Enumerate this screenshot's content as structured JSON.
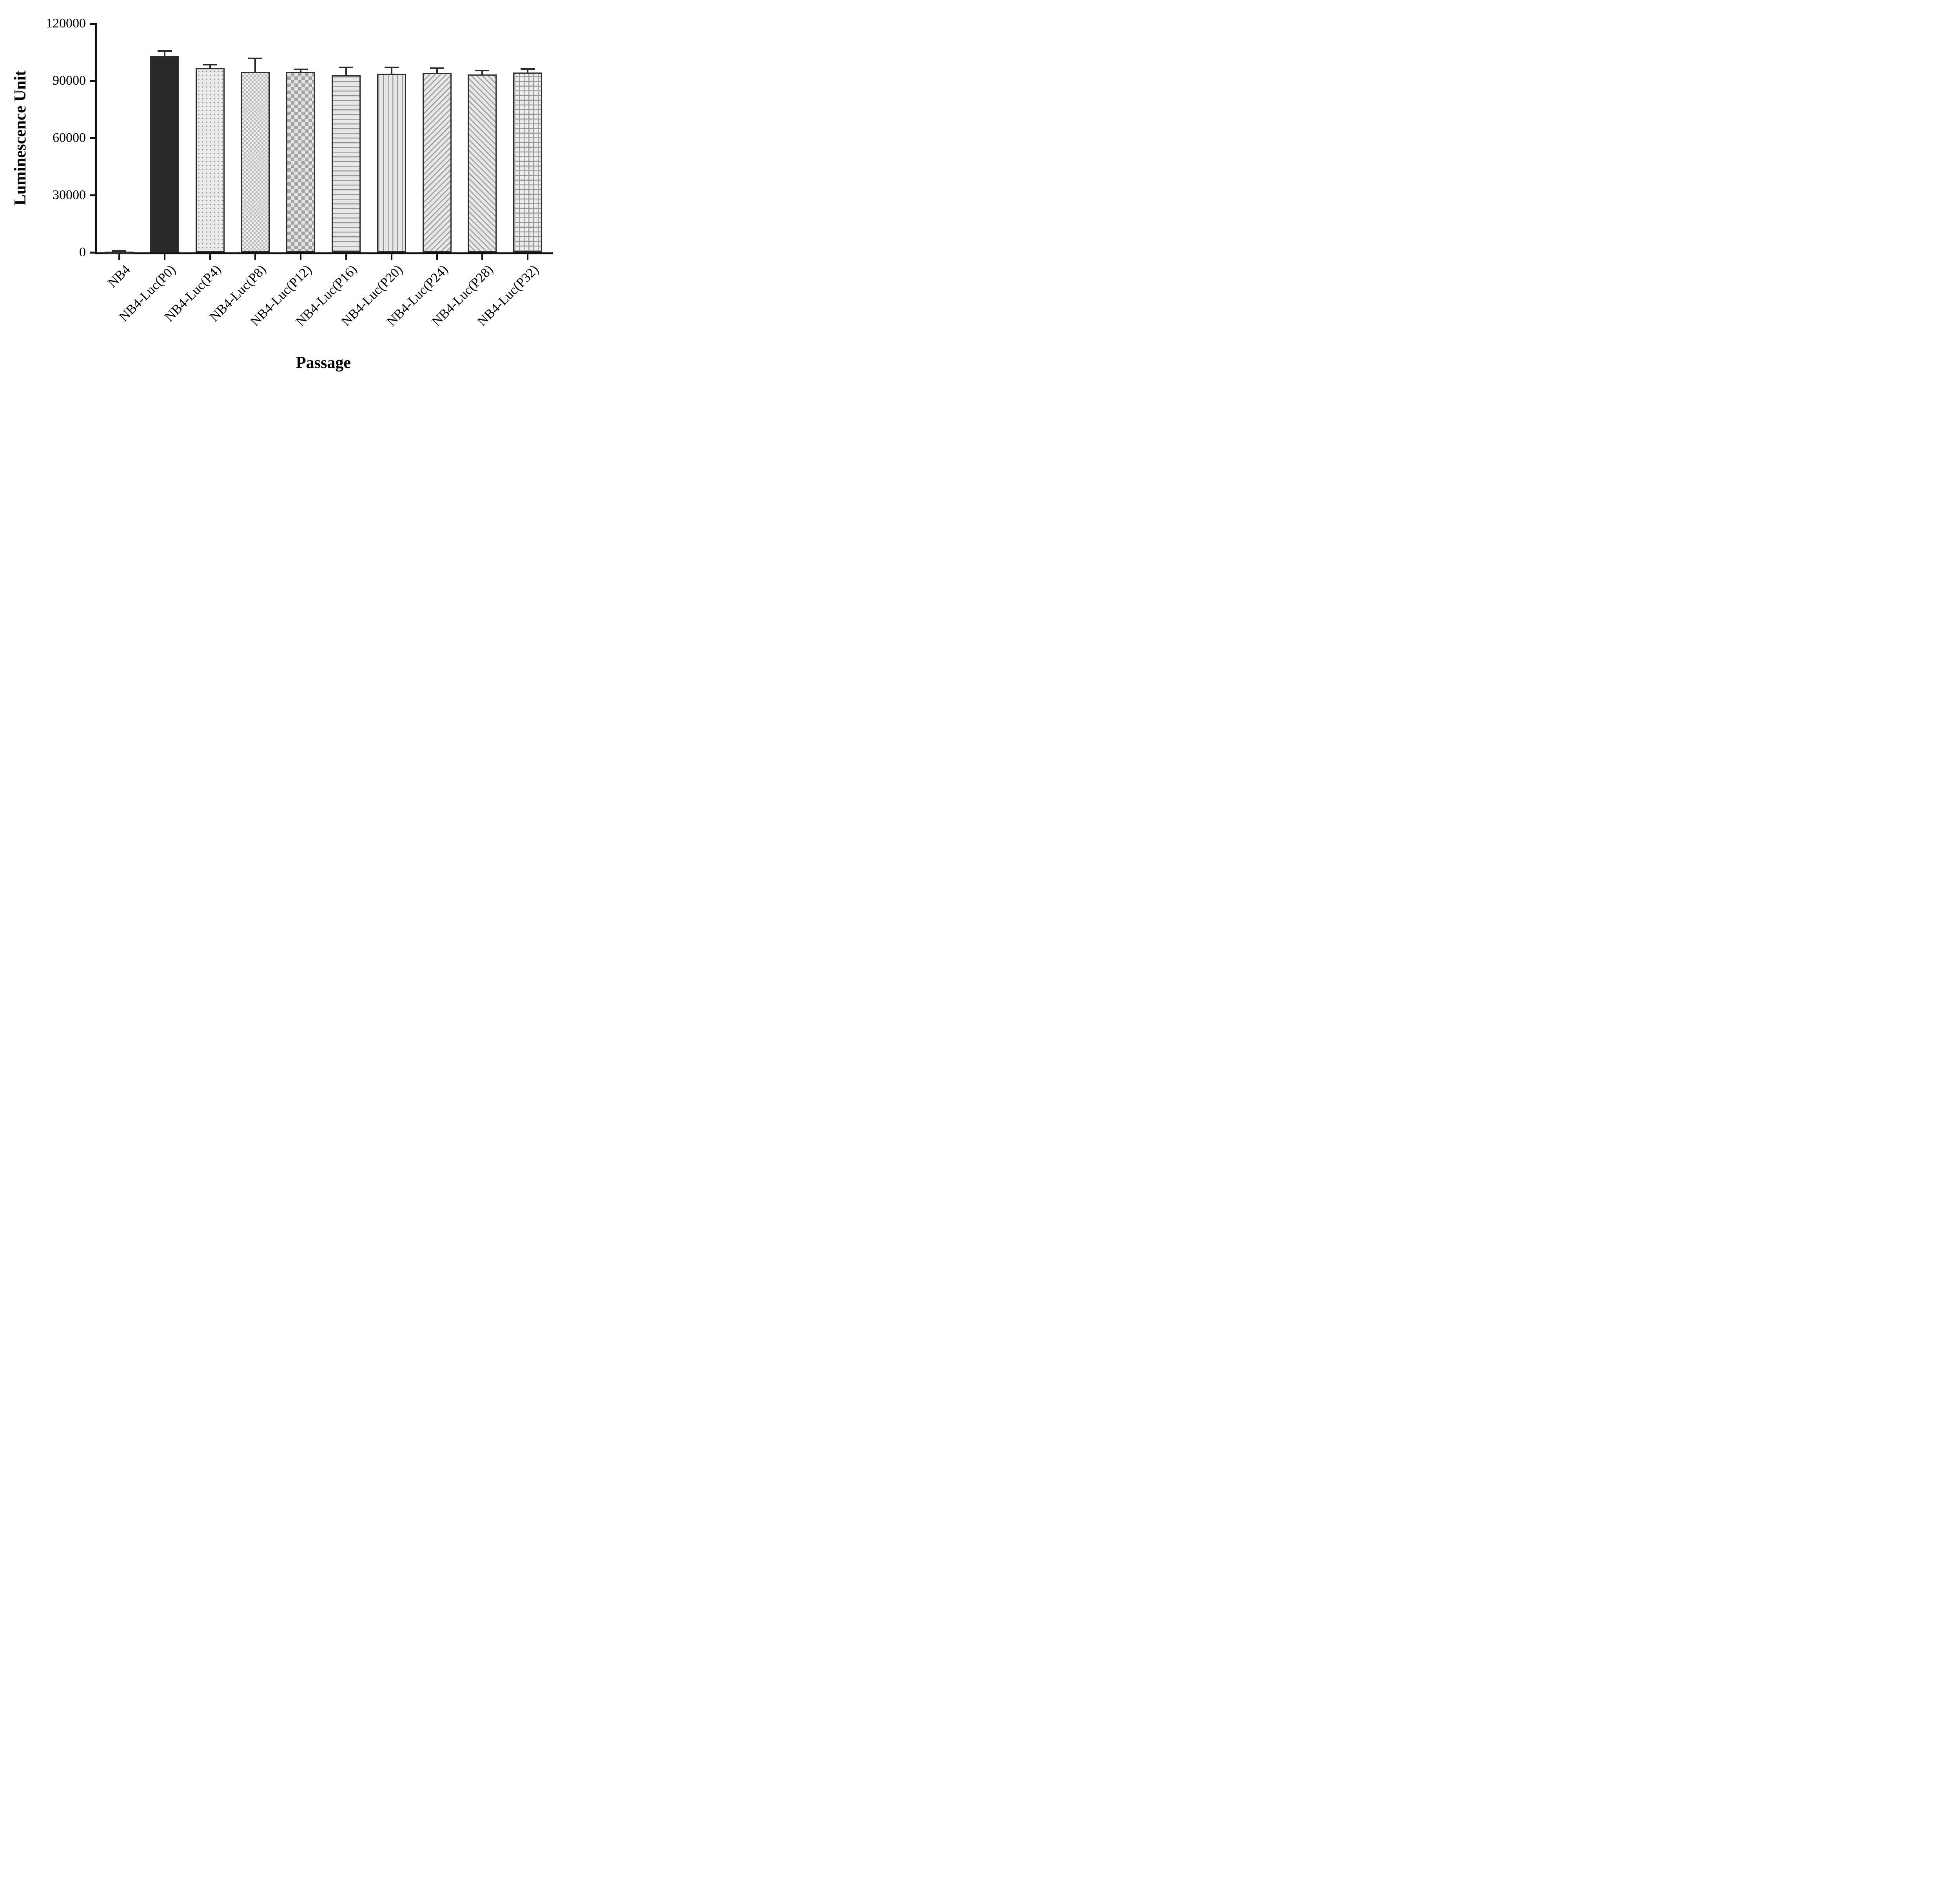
{
  "chart_data": {
    "type": "bar",
    "title": "",
    "xlabel": "Passage",
    "ylabel": "Luminescence Unit",
    "ylim": [
      0,
      120000
    ],
    "yticks": [
      0,
      30000,
      60000,
      90000,
      120000
    ],
    "grid": false,
    "legend": "none",
    "categories": [
      "NB4",
      "NB4-Luc(P0)",
      "NB4-Luc(P4)",
      "NB4-Luc(P8)",
      "NB4-Luc(P12)",
      "NB4-Luc(P16)",
      "NB4-Luc(P20)",
      "NB4-Luc(P24)",
      "NB4-Luc(P28)",
      "NB4-Luc(P32)"
    ],
    "values": [
      400,
      103000,
      96600,
      94600,
      94800,
      92800,
      93800,
      94200,
      93200,
      94400
    ],
    "errors": [
      500,
      2600,
      1800,
      7200,
      1200,
      4200,
      3200,
      2400,
      2200,
      1800
    ],
    "patterns": [
      "solid",
      "solid",
      "dots",
      "checker-fine",
      "checker",
      "hlines",
      "vlines",
      "diag-up",
      "diag-down",
      "grid"
    ],
    "colors": {
      "axis": "#111111",
      "bar_outline": "#2e2e2e",
      "solid_fill": "#282828",
      "pattern_dark": "#979797",
      "pattern_light": "#e7e7e7"
    }
  }
}
